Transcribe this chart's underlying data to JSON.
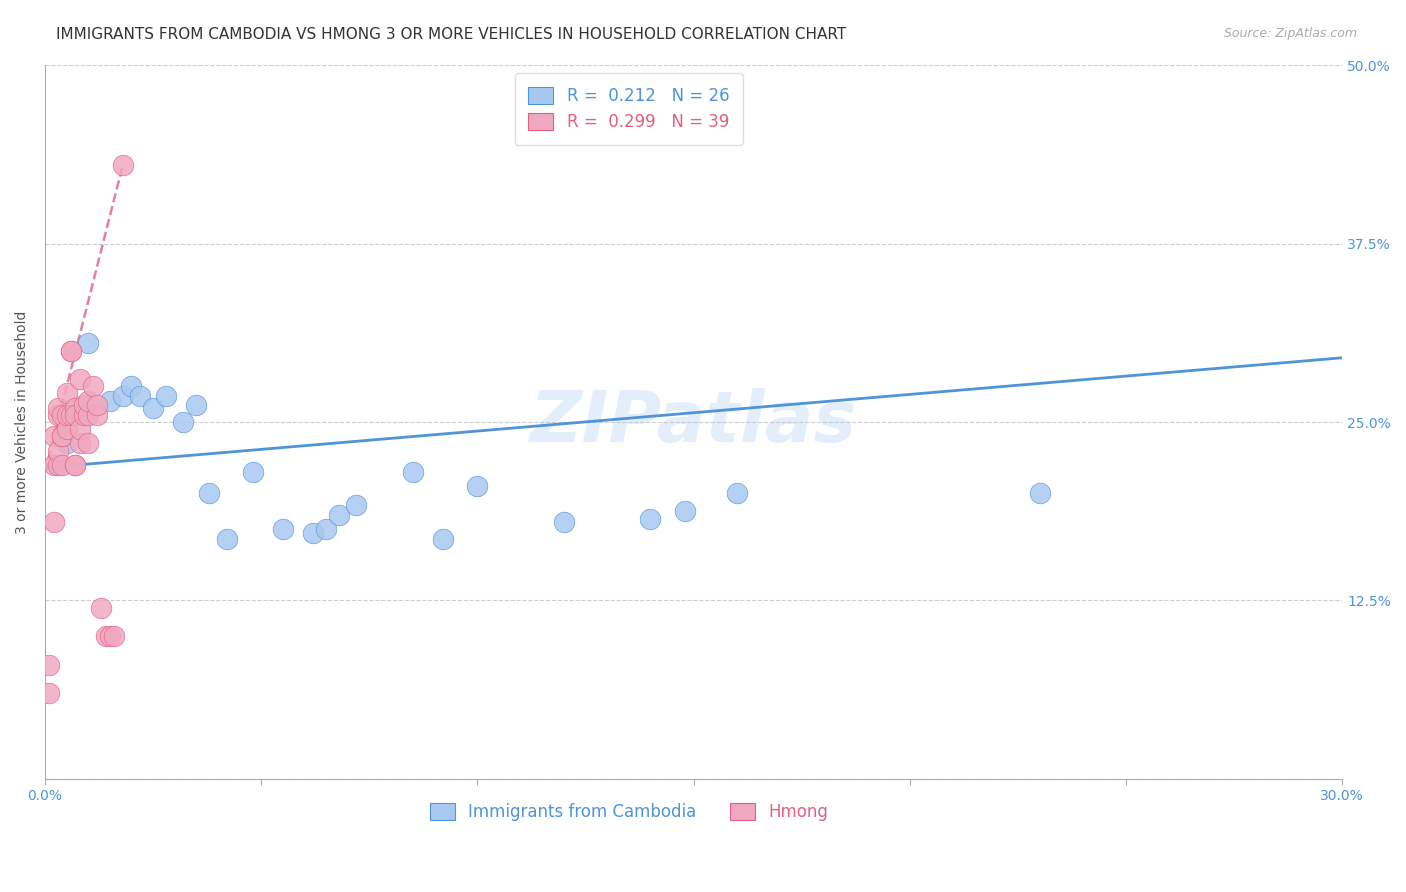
{
  "title": "IMMIGRANTS FROM CAMBODIA VS HMONG 3 OR MORE VEHICLES IN HOUSEHOLD CORRELATION CHART",
  "source": "Source: ZipAtlas.com",
  "ylabel": "3 or more Vehicles in Household",
  "yticks": [
    0.0,
    0.125,
    0.25,
    0.375,
    0.5
  ],
  "ytick_labels": [
    "",
    "12.5%",
    "25.0%",
    "37.5%",
    "50.0%"
  ],
  "xlim": [
    0.0,
    0.3
  ],
  "ylim": [
    0.0,
    0.5
  ],
  "watermark": "ZIPatlas",
  "cambodia_R": 0.212,
  "cambodia_N": 26,
  "hmong_R": 0.299,
  "hmong_N": 39,
  "cambodia_color": "#a8c8f0",
  "hmong_color": "#f0a8c0",
  "trendline_cambodia_color": "#4d94d9",
  "trendline_hmong_color": "#e06080",
  "cambodia_x": [
    0.005,
    0.01,
    0.015,
    0.018,
    0.02,
    0.022,
    0.025,
    0.028,
    0.032,
    0.035,
    0.038,
    0.042,
    0.048,
    0.055,
    0.062,
    0.065,
    0.068,
    0.072,
    0.085,
    0.092,
    0.1,
    0.12,
    0.14,
    0.148,
    0.16,
    0.23
  ],
  "cambodia_y": [
    0.235,
    0.305,
    0.265,
    0.268,
    0.275,
    0.268,
    0.26,
    0.268,
    0.25,
    0.262,
    0.2,
    0.168,
    0.215,
    0.175,
    0.172,
    0.175,
    0.185,
    0.192,
    0.215,
    0.168,
    0.205,
    0.18,
    0.182,
    0.188,
    0.2,
    0.2
  ],
  "hmong_x": [
    0.001,
    0.001,
    0.002,
    0.002,
    0.002,
    0.003,
    0.003,
    0.003,
    0.003,
    0.004,
    0.004,
    0.004,
    0.004,
    0.005,
    0.005,
    0.005,
    0.006,
    0.006,
    0.006,
    0.007,
    0.007,
    0.007,
    0.007,
    0.008,
    0.008,
    0.008,
    0.009,
    0.009,
    0.01,
    0.01,
    0.01,
    0.011,
    0.012,
    0.012,
    0.013,
    0.014,
    0.015,
    0.016,
    0.018
  ],
  "hmong_y": [
    0.08,
    0.06,
    0.18,
    0.22,
    0.24,
    0.22,
    0.255,
    0.26,
    0.23,
    0.24,
    0.255,
    0.22,
    0.24,
    0.245,
    0.255,
    0.27,
    0.3,
    0.3,
    0.255,
    0.26,
    0.22,
    0.255,
    0.22,
    0.28,
    0.235,
    0.245,
    0.255,
    0.262,
    0.235,
    0.255,
    0.265,
    0.275,
    0.255,
    0.262,
    0.12,
    0.1,
    0.1,
    0.1,
    0.43
  ],
  "cambodia_trendline_x": [
    0.0,
    0.3
  ],
  "cambodia_trendline_y": [
    0.218,
    0.295
  ],
  "hmong_trendline_x": [
    0.0,
    0.018
  ],
  "hmong_trendline_y": [
    0.215,
    0.43
  ],
  "legend_label_cambodia": "Immigrants from Cambodia",
  "legend_label_hmong": "Hmong",
  "background_color": "#ffffff",
  "grid_color": "#cccccc",
  "title_color": "#333333",
  "axis_label_color": "#555555",
  "title_fontsize": 11,
  "source_fontsize": 9,
  "axis_label_fontsize": 10,
  "tick_fontsize": 10,
  "legend_fontsize": 12
}
